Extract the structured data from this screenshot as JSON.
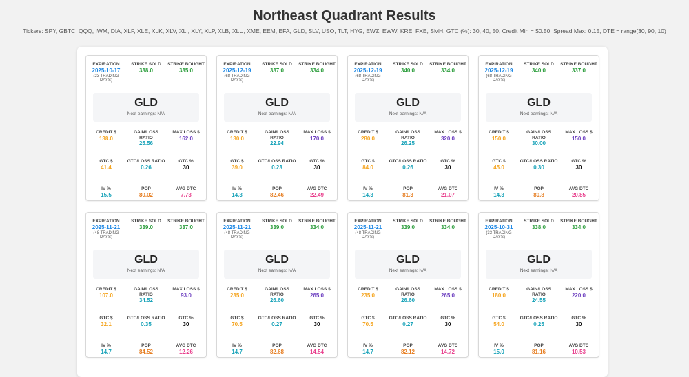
{
  "page": {
    "title": "Northeast Quadrant Results",
    "subtitle": "Tickers: SPY, GBTC, QQQ, IWM, DIA, XLF, XLE, XLK, XLV, XLI, XLY, XLP, XLB, XLU, XME, EEM, EFA, GLD, SLV, USO, TLT, HYG, EWZ, EWW, KRE, FXE, SMH, GTC (%): 30, 40, 50, Credit Min = $0.50, Spread Max: 0.15, DTE = range(30, 90, 10)"
  },
  "labels": {
    "expiration": "EXPIRATION",
    "strike_sold": "STRIKE SOLD",
    "strike_bought": "STRIKE BOUGHT",
    "credit": "CREDIT $",
    "gain_loss": "GAIN/LOSS RATIO",
    "max_loss": "MAX LOSS $",
    "gtc_dollar": "GTC $",
    "gtc_loss": "GTC/LOSS RATIO",
    "gtc_pct": "GTC %",
    "iv": "IV %",
    "pop": "POP",
    "avg_dtc": "AVG DTC",
    "next_earnings": "Next earnings: N/A"
  },
  "cards": [
    {
      "ticker": "GLD",
      "expiration": "2025-10-17",
      "trading_days": "(23 TRADING DAYS)",
      "strike_sold": "338.0",
      "strike_bought": "335.0",
      "credit": "138.0",
      "gain_loss": "25.56",
      "max_loss": "162.0",
      "gtc_dollar": "41.4",
      "gtc_loss": "0.26",
      "gtc_pct": "30",
      "iv": "15.5",
      "pop": "80.02",
      "avg_dtc": "7.73"
    },
    {
      "ticker": "GLD",
      "expiration": "2025-12-19",
      "trading_days": "(68 TRADING DAYS)",
      "strike_sold": "337.0",
      "strike_bought": "334.0",
      "credit": "130.0",
      "gain_loss": "22.94",
      "max_loss": "170.0",
      "gtc_dollar": "39.0",
      "gtc_loss": "0.23",
      "gtc_pct": "30",
      "iv": "14.3",
      "pop": "82.46",
      "avg_dtc": "22.49"
    },
    {
      "ticker": "GLD",
      "expiration": "2025-12-19",
      "trading_days": "(68 TRADING DAYS)",
      "strike_sold": "340.0",
      "strike_bought": "334.0",
      "credit": "280.0",
      "gain_loss": "26.25",
      "max_loss": "320.0",
      "gtc_dollar": "84.0",
      "gtc_loss": "0.26",
      "gtc_pct": "30",
      "iv": "14.3",
      "pop": "81.3",
      "avg_dtc": "21.07"
    },
    {
      "ticker": "GLD",
      "expiration": "2025-12-19",
      "trading_days": "(68 TRADING DAYS)",
      "strike_sold": "340.0",
      "strike_bought": "337.0",
      "credit": "150.0",
      "gain_loss": "30.00",
      "max_loss": "150.0",
      "gtc_dollar": "45.0",
      "gtc_loss": "0.30",
      "gtc_pct": "30",
      "iv": "14.3",
      "pop": "80.8",
      "avg_dtc": "20.85"
    },
    {
      "ticker": "GLD",
      "expiration": "2025-11-21",
      "trading_days": "(48 TRADING DAYS)",
      "strike_sold": "339.0",
      "strike_bought": "337.0",
      "credit": "107.0",
      "gain_loss": "34.52",
      "max_loss": "93.0",
      "gtc_dollar": "32.1",
      "gtc_loss": "0.35",
      "gtc_pct": "30",
      "iv": "14.7",
      "pop": "84.52",
      "avg_dtc": "12.26"
    },
    {
      "ticker": "GLD",
      "expiration": "2025-11-21",
      "trading_days": "(48 TRADING DAYS)",
      "strike_sold": "339.0",
      "strike_bought": "334.0",
      "credit": "235.0",
      "gain_loss": "26.60",
      "max_loss": "265.0",
      "gtc_dollar": "70.5",
      "gtc_loss": "0.27",
      "gtc_pct": "30",
      "iv": "14.7",
      "pop": "82.68",
      "avg_dtc": "14.54"
    },
    {
      "ticker": "GLD",
      "expiration": "2025-11-21",
      "trading_days": "(48 TRADING DAYS)",
      "strike_sold": "339.0",
      "strike_bought": "334.0",
      "credit": "235.0",
      "gain_loss": "26.60",
      "max_loss": "265.0",
      "gtc_dollar": "70.5",
      "gtc_loss": "0.27",
      "gtc_pct": "30",
      "iv": "14.7",
      "pop": "82.12",
      "avg_dtc": "14.72"
    },
    {
      "ticker": "GLD",
      "expiration": "2025-10-31",
      "trading_days": "(33 TRADING DAYS)",
      "strike_sold": "338.0",
      "strike_bought": "334.0",
      "credit": "180.0",
      "gain_loss": "24.55",
      "max_loss": "220.0",
      "gtc_dollar": "54.0",
      "gtc_loss": "0.25",
      "gtc_pct": "30",
      "iv": "15.0",
      "pop": "81.16",
      "avg_dtc": "10.53"
    }
  ]
}
